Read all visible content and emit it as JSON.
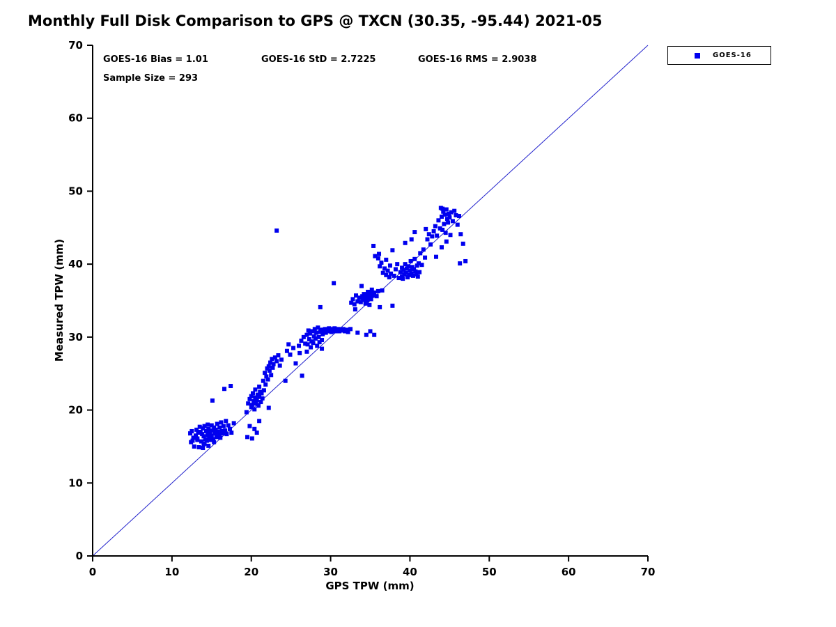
{
  "title": "Monthly Full Disk Comparison to GPS @ TXCN (30.35, -95.44) 2021-05",
  "stats": {
    "bias": "GOES-16 Bias = 1.01",
    "std": "GOES-16 StD = 2.7225",
    "rms": "GOES-16 RMS = 2.9038",
    "sample": "Sample Size = 293"
  },
  "legend": {
    "label": "GOES-16"
  },
  "colors": {
    "marker": "#0000ee",
    "ref_line": "#2222cc",
    "axis": "#000000"
  },
  "chart_data": {
    "type": "scatter",
    "title": "Monthly Full Disk Comparison to GPS @ TXCN (30.35, -95.44) 2021-05",
    "xlabel": "GPS TPW (mm)",
    "ylabel": "Measured TPW (mm)",
    "xlim": [
      0,
      70
    ],
    "ylim": [
      0,
      70
    ],
    "xticks": [
      0,
      10,
      20,
      30,
      40,
      50,
      60,
      70
    ],
    "yticks": [
      0,
      10,
      20,
      30,
      40,
      50,
      60,
      70
    ],
    "grid": false,
    "legend_position": "top-right",
    "annotations": [
      "GOES-16 Bias = 1.01",
      "GOES-16 StD = 2.7225",
      "GOES-16 RMS = 2.9038",
      "Sample Size = 293"
    ],
    "reference_line": {
      "from": [
        0,
        0
      ],
      "to": [
        70,
        70
      ]
    },
    "series": [
      {
        "name": "GOES-16",
        "marker": "square",
        "color": "#0000ee",
        "points": [
          [
            12.3,
            16.8
          ],
          [
            12.4,
            15.6
          ],
          [
            12.5,
            17.1
          ],
          [
            12.7,
            16.2
          ],
          [
            12.8,
            15.0
          ],
          [
            13.0,
            16.5
          ],
          [
            13.1,
            17.3
          ],
          [
            13.2,
            15.9
          ],
          [
            13.3,
            16.9
          ],
          [
            13.4,
            14.9
          ],
          [
            13.5,
            17.7
          ],
          [
            13.6,
            17.0
          ],
          [
            13.7,
            15.7
          ],
          [
            13.8,
            16.7
          ],
          [
            13.9,
            17.5
          ],
          [
            14.0,
            15.3
          ],
          [
            14.0,
            16.4
          ],
          [
            14.1,
            17.8
          ],
          [
            14.2,
            16.0
          ],
          [
            14.3,
            17.1
          ],
          [
            14.4,
            15.8
          ],
          [
            14.5,
            18.0
          ],
          [
            14.5,
            16.6
          ],
          [
            14.6,
            17.4
          ],
          [
            14.7,
            16.1
          ],
          [
            14.8,
            17.0
          ],
          [
            14.9,
            15.9
          ],
          [
            15.0,
            17.9
          ],
          [
            15.0,
            16.5
          ],
          [
            15.1,
            17.2
          ],
          [
            15.2,
            16.0
          ],
          [
            15.3,
            17.6
          ],
          [
            15.4,
            16.8
          ],
          [
            15.5,
            17.3
          ],
          [
            15.6,
            16.3
          ],
          [
            15.7,
            18.1
          ],
          [
            15.8,
            17.0
          ],
          [
            15.9,
            16.6
          ],
          [
            16.0,
            17.6
          ],
          [
            16.1,
            16.2
          ],
          [
            16.2,
            18.3
          ],
          [
            16.3,
            17.1
          ],
          [
            16.4,
            16.8
          ],
          [
            16.5,
            17.8
          ],
          [
            16.7,
            17.2
          ],
          [
            16.9,
            16.7
          ],
          [
            17.1,
            17.9
          ],
          [
            17.3,
            17.4
          ],
          [
            17.5,
            16.9
          ],
          [
            12.6,
            15.8
          ],
          [
            13.2,
            16.1
          ],
          [
            14.1,
            15.4
          ],
          [
            15.3,
            15.6
          ],
          [
            16.8,
            18.5
          ],
          [
            17.8,
            18.2
          ],
          [
            13.9,
            14.8
          ],
          [
            14.6,
            15.1
          ],
          [
            15.1,
            21.3
          ],
          [
            16.6,
            22.9
          ],
          [
            17.4,
            23.3
          ],
          [
            19.5,
            16.3
          ],
          [
            20.1,
            16.1
          ],
          [
            20.4,
            17.4
          ],
          [
            19.8,
            17.8
          ],
          [
            21.0,
            18.5
          ],
          [
            20.7,
            16.9
          ],
          [
            19.4,
            19.7
          ],
          [
            19.6,
            20.9
          ],
          [
            19.8,
            21.5
          ],
          [
            20.0,
            20.4
          ],
          [
            20.0,
            21.9
          ],
          [
            20.1,
            20.7
          ],
          [
            20.2,
            22.3
          ],
          [
            20.3,
            21.2
          ],
          [
            20.4,
            20.1
          ],
          [
            20.5,
            21.7
          ],
          [
            20.5,
            22.8
          ],
          [
            20.6,
            20.9
          ],
          [
            20.7,
            21.4
          ],
          [
            20.8,
            22.1
          ],
          [
            20.9,
            20.6
          ],
          [
            21.0,
            21.8
          ],
          [
            21.0,
            23.2
          ],
          [
            21.1,
            22.5
          ],
          [
            21.2,
            21.1
          ],
          [
            21.3,
            22.3
          ],
          [
            21.4,
            21.6
          ],
          [
            21.5,
            24.0
          ],
          [
            21.6,
            22.7
          ],
          [
            21.7,
            25.1
          ],
          [
            21.8,
            23.5
          ],
          [
            21.9,
            24.6
          ],
          [
            22.0,
            25.7
          ],
          [
            22.1,
            24.2
          ],
          [
            22.2,
            26.0
          ],
          [
            22.3,
            25.4
          ],
          [
            22.4,
            26.5
          ],
          [
            22.5,
            24.8
          ],
          [
            22.6,
            27.0
          ],
          [
            22.7,
            25.8
          ],
          [
            22.8,
            26.3
          ],
          [
            23.0,
            27.2
          ],
          [
            23.2,
            26.7
          ],
          [
            23.4,
            27.5
          ],
          [
            23.6,
            26.1
          ],
          [
            23.8,
            26.9
          ],
          [
            22.2,
            20.3
          ],
          [
            24.3,
            24.0
          ],
          [
            24.5,
            28.1
          ],
          [
            24.9,
            27.6
          ],
          [
            25.3,
            28.5
          ],
          [
            24.7,
            29.0
          ],
          [
            25.6,
            26.4
          ],
          [
            26.1,
            27.8
          ],
          [
            26.4,
            24.7
          ],
          [
            26.0,
            28.8
          ],
          [
            26.3,
            29.5
          ],
          [
            26.6,
            30.0
          ],
          [
            26.8,
            29.1
          ],
          [
            27.0,
            30.3
          ],
          [
            27.1,
            29.0
          ],
          [
            27.2,
            30.9
          ],
          [
            27.3,
            29.7
          ],
          [
            27.4,
            30.5
          ],
          [
            27.5,
            28.6
          ],
          [
            27.6,
            29.4
          ],
          [
            27.7,
            30.8
          ],
          [
            27.8,
            29.2
          ],
          [
            27.9,
            30.1
          ],
          [
            28.0,
            31.1
          ],
          [
            28.1,
            29.8
          ],
          [
            28.2,
            30.6
          ],
          [
            28.3,
            28.8
          ],
          [
            28.4,
            31.3
          ],
          [
            28.5,
            30.0
          ],
          [
            28.6,
            29.3
          ],
          [
            28.7,
            30.7
          ],
          [
            28.8,
            31.0
          ],
          [
            28.9,
            29.6
          ],
          [
            29.0,
            30.4
          ],
          [
            29.1,
            31.0
          ],
          [
            29.2,
            30.8
          ],
          [
            29.3,
            31.1
          ],
          [
            29.4,
            30.6
          ],
          [
            29.5,
            31.0
          ],
          [
            29.6,
            30.8
          ],
          [
            29.7,
            31.0
          ],
          [
            29.8,
            31.2
          ],
          [
            29.9,
            30.8
          ],
          [
            30.0,
            31.0
          ],
          [
            30.1,
            30.7
          ],
          [
            30.2,
            31.1
          ],
          [
            30.3,
            30.9
          ],
          [
            30.4,
            31.0
          ],
          [
            30.5,
            31.2
          ],
          [
            30.6,
            30.8
          ],
          [
            30.7,
            31.0
          ],
          [
            30.8,
            30.9
          ],
          [
            30.9,
            31.0
          ],
          [
            31.0,
            31.1
          ],
          [
            31.1,
            30.8
          ],
          [
            31.2,
            31.0
          ],
          [
            31.4,
            30.9
          ],
          [
            31.6,
            31.1
          ],
          [
            31.8,
            30.8
          ],
          [
            32.0,
            31.0
          ],
          [
            32.2,
            30.7
          ],
          [
            32.5,
            31.1
          ],
          [
            27.0,
            28.0
          ],
          [
            28.9,
            28.4
          ],
          [
            28.7,
            34.1
          ],
          [
            30.4,
            37.4
          ],
          [
            33.4,
            30.6
          ],
          [
            34.5,
            30.3
          ],
          [
            35.0,
            30.8
          ],
          [
            35.5,
            30.3
          ],
          [
            32.6,
            34.7
          ],
          [
            32.8,
            35.2
          ],
          [
            33.0,
            34.5
          ],
          [
            33.2,
            35.7
          ],
          [
            33.4,
            34.9
          ],
          [
            33.6,
            35.4
          ],
          [
            33.8,
            34.8
          ],
          [
            34.0,
            35.6
          ],
          [
            34.1,
            35.1
          ],
          [
            34.2,
            35.9
          ],
          [
            34.3,
            35.3
          ],
          [
            34.4,
            34.6
          ],
          [
            34.5,
            35.8
          ],
          [
            34.6,
            35.0
          ],
          [
            34.7,
            36.2
          ],
          [
            34.8,
            35.5
          ],
          [
            34.9,
            34.4
          ],
          [
            35.0,
            36.0
          ],
          [
            35.1,
            35.2
          ],
          [
            35.2,
            36.5
          ],
          [
            35.3,
            35.7
          ],
          [
            35.5,
            36.1
          ],
          [
            35.8,
            35.6
          ],
          [
            36.0,
            36.3
          ],
          [
            36.5,
            36.4
          ],
          [
            33.1,
            33.8
          ],
          [
            36.2,
            34.1
          ],
          [
            37.8,
            34.3
          ],
          [
            35.4,
            42.5
          ],
          [
            35.6,
            41.1
          ],
          [
            36.0,
            40.8
          ],
          [
            36.1,
            41.4
          ],
          [
            36.2,
            39.7
          ],
          [
            36.4,
            40.2
          ],
          [
            36.6,
            38.8
          ],
          [
            36.8,
            39.4
          ],
          [
            37.0,
            38.5
          ],
          [
            37.2,
            39.1
          ],
          [
            37.4,
            38.2
          ],
          [
            37.5,
            39.8
          ],
          [
            37.6,
            38.7
          ],
          [
            38.0,
            38.4
          ],
          [
            38.2,
            39.3
          ],
          [
            37.0,
            40.6
          ],
          [
            37.8,
            41.9
          ],
          [
            38.4,
            40.0
          ],
          [
            33.9,
            37.0
          ],
          [
            38.6,
            38.1
          ],
          [
            38.8,
            38.9
          ],
          [
            39.0,
            38.3
          ],
          [
            39.0,
            39.5
          ],
          [
            39.1,
            38.0
          ],
          [
            39.2,
            39.2
          ],
          [
            39.3,
            38.6
          ],
          [
            39.4,
            40.0
          ],
          [
            39.5,
            38.8
          ],
          [
            39.6,
            39.4
          ],
          [
            39.7,
            38.2
          ],
          [
            39.8,
            39.7
          ],
          [
            39.9,
            38.5
          ],
          [
            40.0,
            39.1
          ],
          [
            40.1,
            40.4
          ],
          [
            40.2,
            38.7
          ],
          [
            40.3,
            39.6
          ],
          [
            40.4,
            38.4
          ],
          [
            40.5,
            39.3
          ],
          [
            40.6,
            40.7
          ],
          [
            40.7,
            39.0
          ],
          [
            40.8,
            38.6
          ],
          [
            40.9,
            39.8
          ],
          [
            41.0,
            38.3
          ],
          [
            41.1,
            40.1
          ],
          [
            41.2,
            38.9
          ],
          [
            41.3,
            41.5
          ],
          [
            41.5,
            39.9
          ],
          [
            41.7,
            42.0
          ],
          [
            41.9,
            40.9
          ],
          [
            40.2,
            43.4
          ],
          [
            40.6,
            44.4
          ],
          [
            39.4,
            42.9
          ],
          [
            42.0,
            44.8
          ],
          [
            42.2,
            43.4
          ],
          [
            42.4,
            44.1
          ],
          [
            42.6,
            42.7
          ],
          [
            42.8,
            43.8
          ],
          [
            43.0,
            44.5
          ],
          [
            43.2,
            45.2
          ],
          [
            43.4,
            43.9
          ],
          [
            43.6,
            46.0
          ],
          [
            43.8,
            44.9
          ],
          [
            44.0,
            46.5
          ],
          [
            44.1,
            44.7
          ],
          [
            44.2,
            47.2
          ],
          [
            44.3,
            45.5
          ],
          [
            44.4,
            46.8
          ],
          [
            44.5,
            44.3
          ],
          [
            44.6,
            47.5
          ],
          [
            44.7,
            46.2
          ],
          [
            44.8,
            45.7
          ],
          [
            44.9,
            46.9
          ],
          [
            45.0,
            46.4
          ],
          [
            45.2,
            47.1
          ],
          [
            45.4,
            45.9
          ],
          [
            45.6,
            47.3
          ],
          [
            45.8,
            46.7
          ],
          [
            46.0,
            45.4
          ],
          [
            46.2,
            46.6
          ],
          [
            44.0,
            42.3
          ],
          [
            43.3,
            41.0
          ],
          [
            44.6,
            43.1
          ],
          [
            45.1,
            44.0
          ],
          [
            46.4,
            44.1
          ],
          [
            46.7,
            42.8
          ],
          [
            47.0,
            40.4
          ],
          [
            46.3,
            40.1
          ],
          [
            43.9,
            47.7
          ],
          [
            44.1,
            47.6
          ],
          [
            23.2,
            44.6
          ]
        ]
      }
    ]
  }
}
